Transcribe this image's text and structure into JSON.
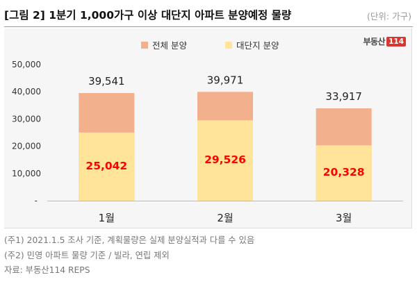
{
  "header": {
    "title": "[그림 2] 1분기 1,000가구 이상 대단지 아파트 분양예정 물량",
    "unit": "(단위: 가구)"
  },
  "brand": {
    "name": "부동산",
    "number": "114"
  },
  "chart_data": {
    "type": "bar",
    "stacked": false,
    "categories": [
      "1월",
      "2월",
      "3월"
    ],
    "series": [
      {
        "name": "전체 분양",
        "values": [
          39541,
          39971,
          33917
        ],
        "color": "#f2b08c"
      },
      {
        "name": "대단지 분양",
        "values": [
          25042,
          29526,
          20328
        ],
        "color": "#ffe49a"
      }
    ],
    "data_labels": {
      "total": [
        "39,541",
        "39,971",
        "33,917"
      ],
      "large": [
        "25,042",
        "29,526",
        "20,328"
      ]
    },
    "y_ticks": [
      "-",
      "10,000",
      "20,000",
      "30,000",
      "40,000",
      "50,000"
    ],
    "ylim": [
      0,
      50000
    ],
    "legend_position": "top",
    "grid": false,
    "label_color_large": "#ff0000"
  },
  "notes": [
    "(주1) 2021.1.5 조사 기준, 계획물량은 실제 분양실적과 다를 수 있음",
    "(주2) 민영 아파트 물량 기준 / 빌라, 연립 제외",
    "자료: 부동산114 REPS"
  ]
}
